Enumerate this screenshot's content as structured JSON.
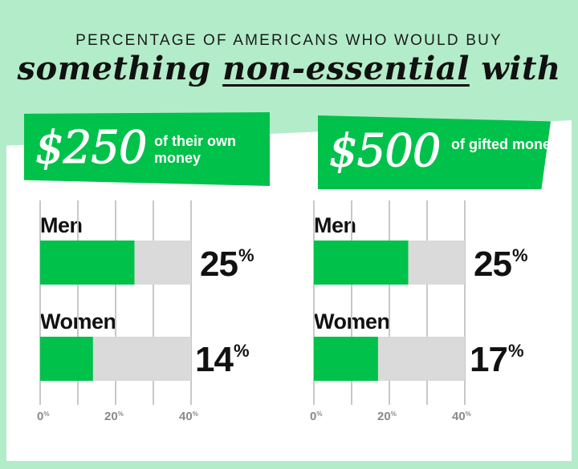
{
  "header": {
    "subtitle": "PERCENTAGE OF AMERICANS WHO WOULD BUY",
    "title_pre": "something ",
    "title_underlined": "non-essential",
    "title_post": " with"
  },
  "colors": {
    "background": "#b3ecc9",
    "accent_green": "#00c14a",
    "bar_track": "#dadada",
    "gridline": "#c8c8c8",
    "text": "#111111",
    "tick_text": "#8a8a8a"
  },
  "chart_data": [
    {
      "type": "bar",
      "orientation": "horizontal",
      "banner_amount": "$250",
      "banner_desc": "of their own money",
      "categories": [
        "Men",
        "Women"
      ],
      "values": [
        25,
        14
      ],
      "value_labels": [
        "25%",
        "14%"
      ],
      "xlim": [
        0,
        40
      ],
      "ticks": [
        0,
        20,
        40
      ],
      "tick_labels": [
        "0%",
        "20%",
        "40%"
      ],
      "grid": true
    },
    {
      "type": "bar",
      "orientation": "horizontal",
      "banner_amount": "$500",
      "banner_desc": "of gifted money",
      "categories": [
        "Men",
        "Women"
      ],
      "values": [
        25,
        17
      ],
      "value_labels": [
        "25%",
        "17%"
      ],
      "xlim": [
        0,
        40
      ],
      "ticks": [
        0,
        20,
        40
      ],
      "tick_labels": [
        "0%",
        "20%",
        "40%"
      ],
      "grid": true
    }
  ]
}
